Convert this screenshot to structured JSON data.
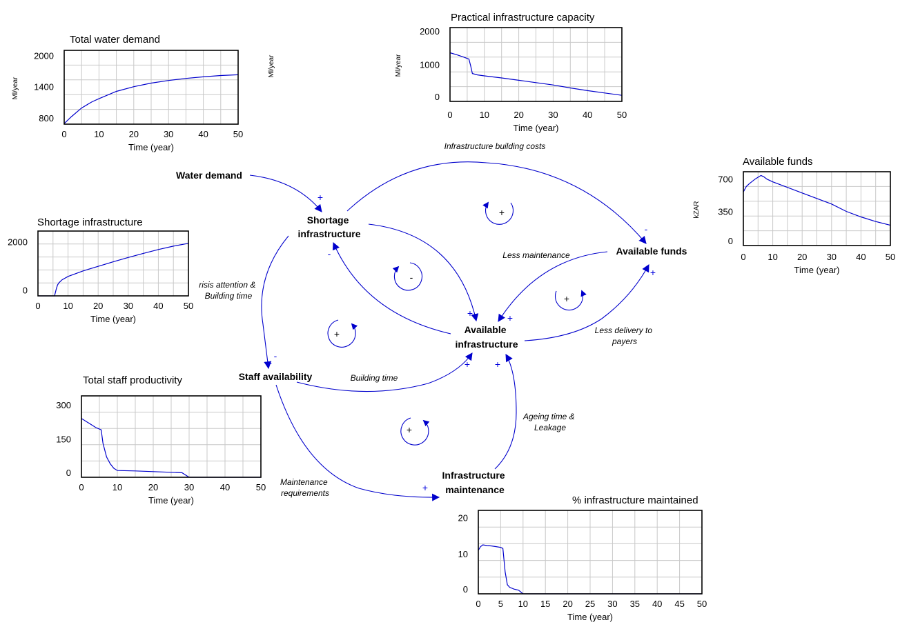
{
  "diagram": {
    "nodes": {
      "water_demand": [
        "Water demand"
      ],
      "shortage_infrastructure": [
        "Shortage",
        "infrastructure"
      ],
      "available_funds": [
        "Available funds"
      ],
      "available_infrastructure": [
        "Available",
        "infrastructure"
      ],
      "staff_availability": [
        "Staff availability"
      ],
      "infrastructure_maintenance": [
        "Infrastructure",
        "maintenance"
      ]
    },
    "link_labels": {
      "building_costs": [
        "Infrastructure building costs"
      ],
      "less_maintenance": [
        "Less maintenance"
      ],
      "crisis_attention": [
        "risis attention &",
        "Building time"
      ],
      "less_delivery": [
        "Less delivery to",
        "payers"
      ],
      "building_time": [
        "Building time"
      ],
      "ageing": [
        "Ageing time &",
        "Leakage"
      ],
      "maintenance_req": [
        "Maintenance",
        "requirements"
      ]
    },
    "polarities": {
      "p1": "+",
      "p2": "-",
      "p3": "-",
      "p4": "+",
      "p5": "+",
      "p6": "+",
      "p7": "+",
      "p8": "-",
      "p9": "+",
      "p10": "+",
      "p11": "+"
    },
    "loops": {
      "l1": "+",
      "l2": "-",
      "l3": "+",
      "l4": "+",
      "l5": "+"
    },
    "line_color": "#0000cc"
  },
  "chart_data": [
    {
      "id": "total-water-demand",
      "type": "line",
      "title": "Total water demand",
      "xlabel": "Time (year)",
      "ylabel": "Ml/year",
      "xlim": [
        0,
        50
      ],
      "ylim": [
        680,
        2100
      ],
      "xticks": [
        "0",
        "10",
        "20",
        "30",
        "40",
        "50"
      ],
      "yticks": [
        {
          "v": 2000,
          "t": "2000"
        },
        {
          "v": 1400,
          "t": "1400"
        },
        {
          "v": 800,
          "t": "800"
        }
      ],
      "x": [
        0,
        2,
        5,
        8,
        10,
        15,
        20,
        25,
        30,
        35,
        40,
        45,
        50
      ],
      "y": [
        690,
        820,
        990,
        1110,
        1170,
        1310,
        1400,
        1470,
        1520,
        1560,
        1590,
        1615,
        1630
      ]
    },
    {
      "id": "practical-infrastructure-capacity",
      "type": "line",
      "title": "Practical infrastructure capacity",
      "xlabel": "Time (year)",
      "ylabel": "Ml/year",
      "xlim": [
        0,
        50
      ],
      "ylim": [
        -100,
        2100
      ],
      "xticks": [
        "0",
        "10",
        "20",
        "30",
        "40",
        "50"
      ],
      "yticks": [
        {
          "v": 2000,
          "t": "2000"
        },
        {
          "v": 1000,
          "t": "1000"
        },
        {
          "v": 0,
          "t": "0"
        }
      ],
      "x": [
        0,
        2,
        4,
        5.5,
        6,
        6.5,
        8,
        10,
        15,
        20,
        25,
        30,
        35,
        40,
        45,
        50
      ],
      "y": [
        1350,
        1290,
        1220,
        1160,
        960,
        730,
        690,
        660,
        600,
        530,
        460,
        390,
        300,
        220,
        150,
        80
      ]
    },
    {
      "id": "available-funds",
      "type": "line",
      "title": "Available funds",
      "xlabel": "Time (year)",
      "ylabel": "kZAR",
      "xlim": [
        0,
        50
      ],
      "ylim": [
        -20,
        780
      ],
      "xticks": [
        "0",
        "10",
        "20",
        "30",
        "40",
        "50"
      ],
      "yticks": [
        {
          "v": 700,
          "t": "700"
        },
        {
          "v": 350,
          "t": "350"
        },
        {
          "v": 0,
          "t": "0"
        }
      ],
      "x": [
        0,
        1,
        2,
        4,
        5,
        6,
        7,
        8,
        10,
        15,
        20,
        25,
        30,
        35,
        40,
        45,
        50
      ],
      "y": [
        560,
        620,
        650,
        700,
        720,
        740,
        725,
        700,
        670,
        610,
        550,
        490,
        430,
        350,
        290,
        240,
        200
      ]
    },
    {
      "id": "shortage-infrastructure",
      "type": "line",
      "title": "Shortage infrastructure",
      "xlabel": "Time (year)",
      "ylabel": "",
      "xlim": [
        0,
        50
      ],
      "ylim": [
        -250,
        2450
      ],
      "xticks": [
        "0",
        "10",
        "20",
        "30",
        "40",
        "50"
      ],
      "yticks": [
        {
          "v": 2000,
          "t": "2000"
        },
        {
          "v": 0,
          "t": "0"
        }
      ],
      "x": [
        0,
        5.5,
        6,
        6.5,
        7,
        8,
        10,
        15,
        20,
        25,
        30,
        35,
        40,
        45,
        50
      ],
      "y": [
        -250,
        -250,
        0,
        200,
        300,
        420,
        560,
        790,
        980,
        1170,
        1350,
        1520,
        1680,
        1820,
        1940
      ]
    },
    {
      "id": "total-staff-productivity",
      "type": "line",
      "title": "Total staff productivity",
      "xlabel": "Time (year)",
      "ylabel": "",
      "xlim": [
        0,
        50
      ],
      "ylim": [
        -20,
        340
      ],
      "xticks": [
        "0",
        "10",
        "20",
        "30",
        "40",
        "50"
      ],
      "yticks": [
        {
          "v": 300,
          "t": "300"
        },
        {
          "v": 150,
          "t": "150"
        },
        {
          "v": 0,
          "t": "0"
        }
      ],
      "x": [
        0,
        2,
        4,
        5.5,
        6,
        7,
        8,
        9,
        10,
        15,
        20,
        25,
        28,
        30,
        50
      ],
      "y": [
        240,
        220,
        200,
        190,
        130,
        70,
        40,
        20,
        10,
        8,
        5,
        2,
        0,
        -20,
        -20
      ]
    },
    {
      "id": "infrastructure-maintained",
      "type": "line",
      "title": "% infrastructure maintained",
      "xlabel": "Time (year)",
      "ylabel": "",
      "xlim": [
        0,
        50
      ],
      "ylim": [
        -1,
        22
      ],
      "xticks": [
        "0",
        "5",
        "10",
        "15",
        "20",
        "25",
        "30",
        "35",
        "40",
        "45",
        "50"
      ],
      "yticks": [
        {
          "v": 20,
          "t": "20"
        },
        {
          "v": 10,
          "t": "10"
        },
        {
          "v": 0,
          "t": "0"
        }
      ],
      "x": [
        0,
        0.5,
        1,
        2,
        3,
        4,
        5,
        5.5,
        6,
        6.5,
        7,
        8,
        9,
        10,
        50
      ],
      "y": [
        11,
        12,
        12.5,
        12.3,
        12.2,
        12,
        11.8,
        11.5,
        5,
        1.5,
        0.8,
        0.3,
        0,
        -1,
        -1
      ]
    }
  ]
}
